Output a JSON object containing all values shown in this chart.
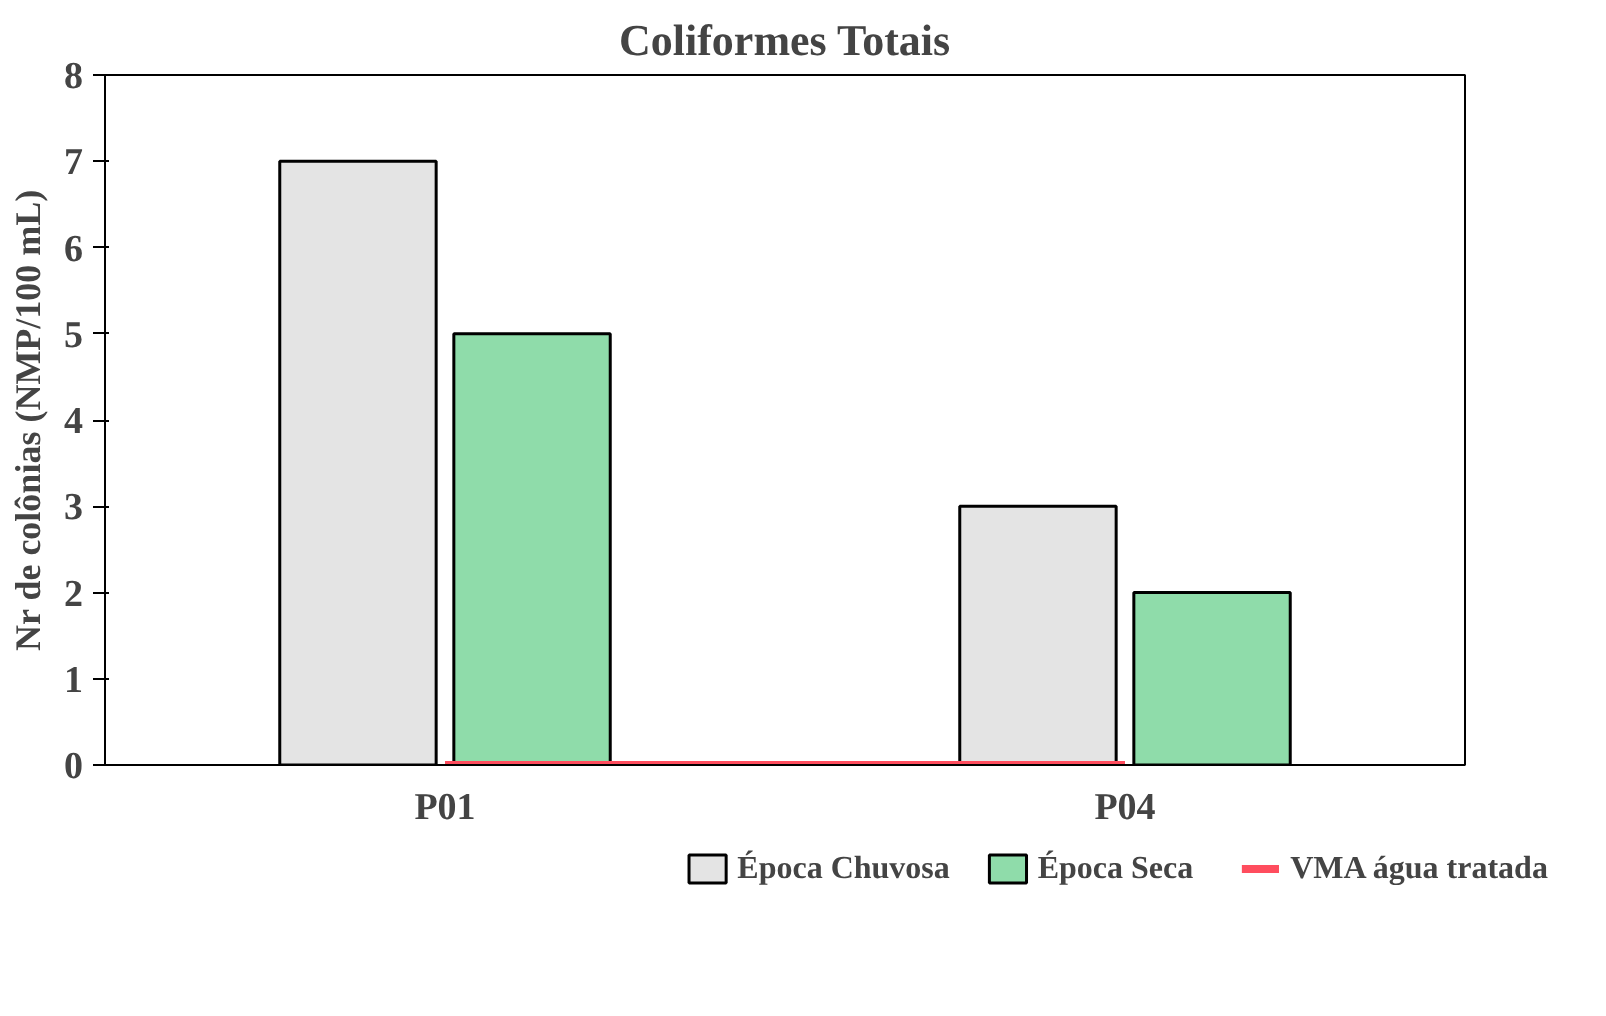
{
  "chart_data": {
    "type": "bar",
    "title": "Coliformes Totais",
    "ylabel": "Nr de colônias (NMP/100 mL)",
    "categories": [
      "P01",
      "P04"
    ],
    "series": [
      {
        "name": "Época Chuvosa",
        "color": "#e4e4e4",
        "values": [
          7,
          3
        ]
      },
      {
        "name": "Época Seca",
        "color": "#8fdcaa",
        "values": [
          5,
          2
        ]
      },
      {
        "name": "VMA água tratada",
        "color": "#ff4d5e",
        "type": "line",
        "values": [
          0,
          0
        ]
      }
    ],
    "ylim": [
      0,
      8
    ],
    "yticks": [
      0,
      1,
      2,
      3,
      4,
      5,
      6,
      7,
      8
    ],
    "grid": false,
    "legend": "bottom"
  }
}
